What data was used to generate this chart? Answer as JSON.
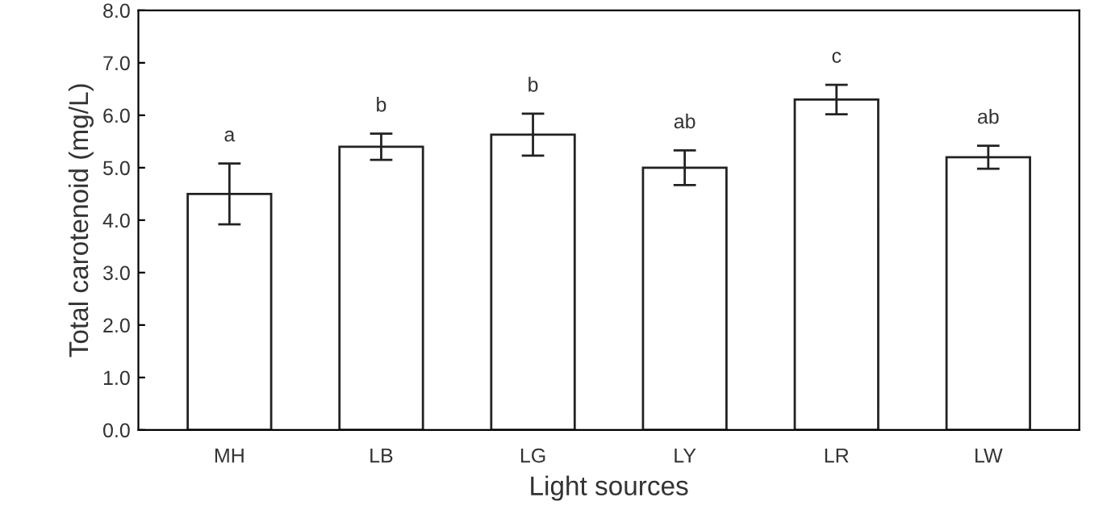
{
  "chart_data": {
    "type": "bar",
    "xlabel": "Light sources",
    "ylabel": "Total carotenoid (mg/L)",
    "categories": [
      "MH",
      "LB",
      "LG",
      "LY",
      "LR",
      "LW"
    ],
    "values": [
      4.5,
      5.4,
      5.63,
      5.0,
      6.3,
      5.2
    ],
    "errors": [
      0.58,
      0.25,
      0.4,
      0.33,
      0.28,
      0.22
    ],
    "color": "#ffffff",
    "ylim": [
      0,
      8
    ],
    "yticks": [
      {
        "value": 0,
        "label": "0.0"
      },
      {
        "value": 1,
        "label": "1.0"
      },
      {
        "value": 2,
        "label": "2.0"
      },
      {
        "value": 3,
        "label": "3.0"
      },
      {
        "value": 4,
        "label": "4.0"
      },
      {
        "value": 5,
        "label": "5.0"
      },
      {
        "value": 6,
        "label": "6.0"
      },
      {
        "value": 7,
        "label": "7.0"
      },
      {
        "value": 8,
        "label": "8.0"
      }
    ],
    "annotations": [
      {
        "text": "a",
        "x": "MH",
        "y": 5.08
      },
      {
        "text": "b",
        "x": "LB",
        "y": 5.65
      },
      {
        "text": "b",
        "x": "LG",
        "y": 6.03
      },
      {
        "text": "ab",
        "x": "LY",
        "y": 5.33
      },
      {
        "text": "c",
        "x": "LR",
        "y": 6.58
      },
      {
        "text": "ab",
        "x": "LW",
        "y": 5.42
      }
    ],
    "grid": false,
    "legend": false
  }
}
